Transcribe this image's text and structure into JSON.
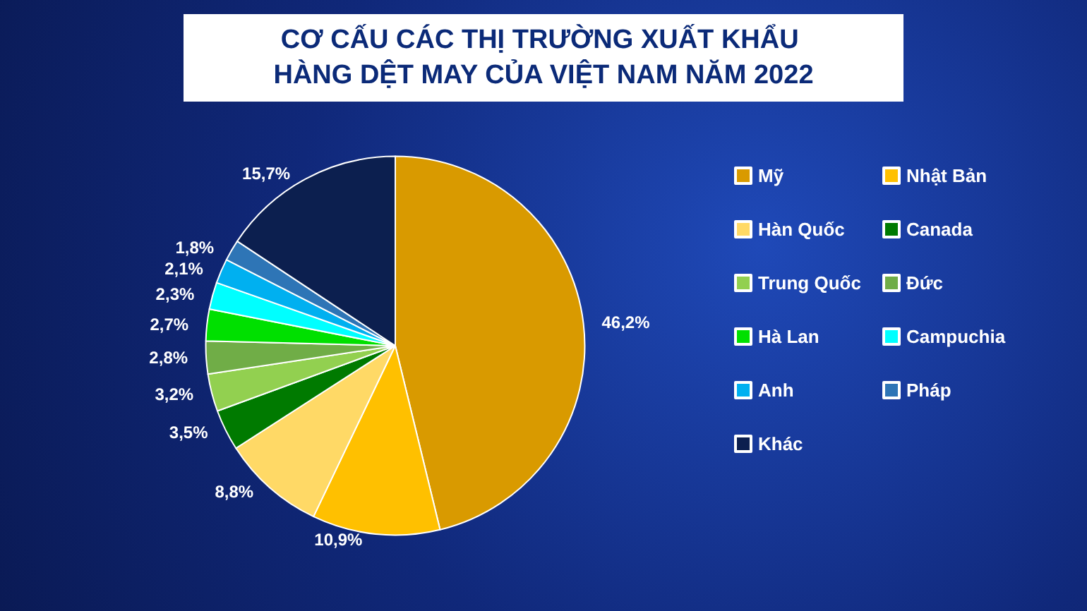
{
  "chart_data": {
    "type": "pie",
    "title": "CƠ CẤU CÁC THỊ TRƯỜNG XUẤT KHẨU HÀNG DỆT MAY CỦA VIỆT NAM NĂM 2022",
    "categories": [
      "Mỹ",
      "Nhật Bản",
      "Hàn Quốc",
      "Canada",
      "Trung Quốc",
      "Đức",
      "Hà Lan",
      "Campuchia",
      "Anh",
      "Pháp",
      "Khác"
    ],
    "values": [
      46.2,
      10.9,
      8.8,
      3.5,
      3.2,
      2.8,
      2.7,
      2.3,
      2.1,
      1.8,
      15.7
    ],
    "value_labels": [
      "46,2%",
      "10,9%",
      "8,8%",
      "3,5%",
      "3,2%",
      "2,8%",
      "2,7%",
      "2,3%",
      "2,1%",
      "1,8%",
      "15,7%"
    ],
    "colors": [
      "#d99a00",
      "#ffc000",
      "#ffd966",
      "#007a00",
      "#92d050",
      "#70ad47",
      "#00e000",
      "#00ffff",
      "#00b0f0",
      "#2e75b6",
      "#0c1f4f"
    ],
    "legend": "right"
  }
}
